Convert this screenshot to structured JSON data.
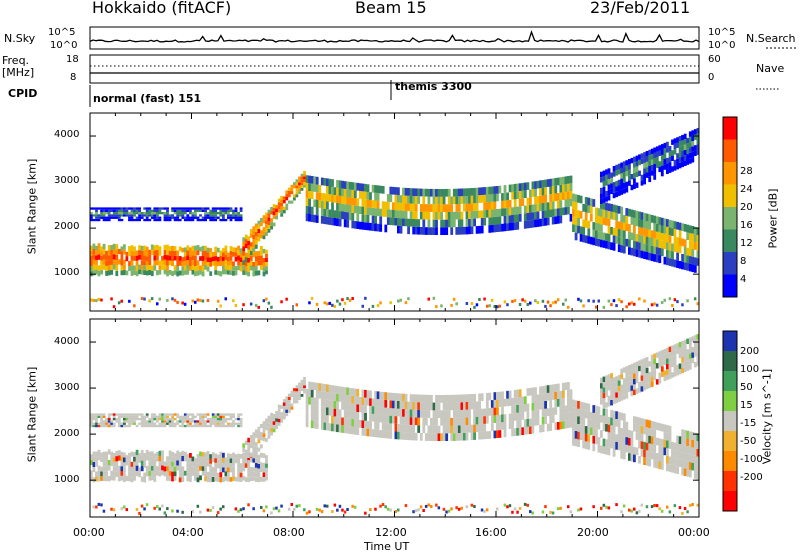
{
  "header": {
    "station": "Hokkaido (fitACF)",
    "beam": "Beam 15",
    "date": "23/Feb/2011"
  },
  "top_panels": {
    "nsky_label": "N.Sky",
    "nsky_ticks": [
      "10^5",
      "10^0"
    ],
    "nsearch_label": "N.Search",
    "freq_label": "Freq.",
    "freq_unit": "[MHz]",
    "freq_ticks": [
      "18",
      "8"
    ],
    "nave_label": "Nave",
    "nave_ticks": [
      "60",
      "0"
    ],
    "cpid_label": "CPID",
    "cpid_segments": [
      {
        "label": "normal (fast) 151",
        "start": "00:00"
      },
      {
        "label": "themis 3300",
        "start": "12:00"
      }
    ]
  },
  "chart_data": [
    {
      "type": "heatmap",
      "title": "Power",
      "xlabel": "",
      "ylabel": "Slant Range [km]",
      "colorbar_label": "Power [dB]",
      "colorbar_ticks": [
        "28",
        "24",
        "20",
        "16",
        "12",
        "8",
        "4"
      ],
      "colorbar_colors": [
        "#ff0000",
        "#ff5a00",
        "#ff9600",
        "#f0c000",
        "#7ab46e",
        "#3a8860",
        "#2a40c0",
        "#0000ff"
      ],
      "y_ticks": [
        "4000",
        "3000",
        "2000",
        "1000"
      ],
      "ylim": [
        200,
        4500
      ],
      "x_ticks": [
        "00:00",
        "04:00",
        "08:00",
        "12:00",
        "16:00",
        "20:00",
        "00:00"
      ],
      "xlim_hours": [
        0,
        24
      ],
      "features": [
        {
          "name": "near band",
          "hours": [
            0,
            7
          ],
          "range_km": [
            950,
            1650
          ],
          "power_db": 28
        },
        {
          "name": "far band",
          "hours": [
            8.5,
            19
          ],
          "range_km": [
            2000,
            3200
          ],
          "power_db": 24
        }
      ]
    },
    {
      "type": "heatmap",
      "title": "Velocity",
      "xlabel": "Time UT",
      "ylabel": "Slant Range [km]",
      "colorbar_label": "Velocity [m s^-1]",
      "colorbar_ticks": [
        "200",
        "100",
        "50",
        "15",
        "-15",
        "-50",
        "-100",
        "-200"
      ],
      "colorbar_colors": [
        "#1c34b0",
        "#2f6a48",
        "#3ea05a",
        "#7fd040",
        "#c8c8c0",
        "#f0b030",
        "#ff8a00",
        "#ff3300",
        "#ff0000"
      ],
      "y_ticks": [
        "4000",
        "3000",
        "2000",
        "1000"
      ],
      "ylim": [
        200,
        4500
      ],
      "x_ticks": [
        "00:00",
        "04:00",
        "08:00",
        "12:00",
        "16:00",
        "20:00",
        "00:00"
      ],
      "xlim_hours": [
        0,
        24
      ]
    }
  ]
}
